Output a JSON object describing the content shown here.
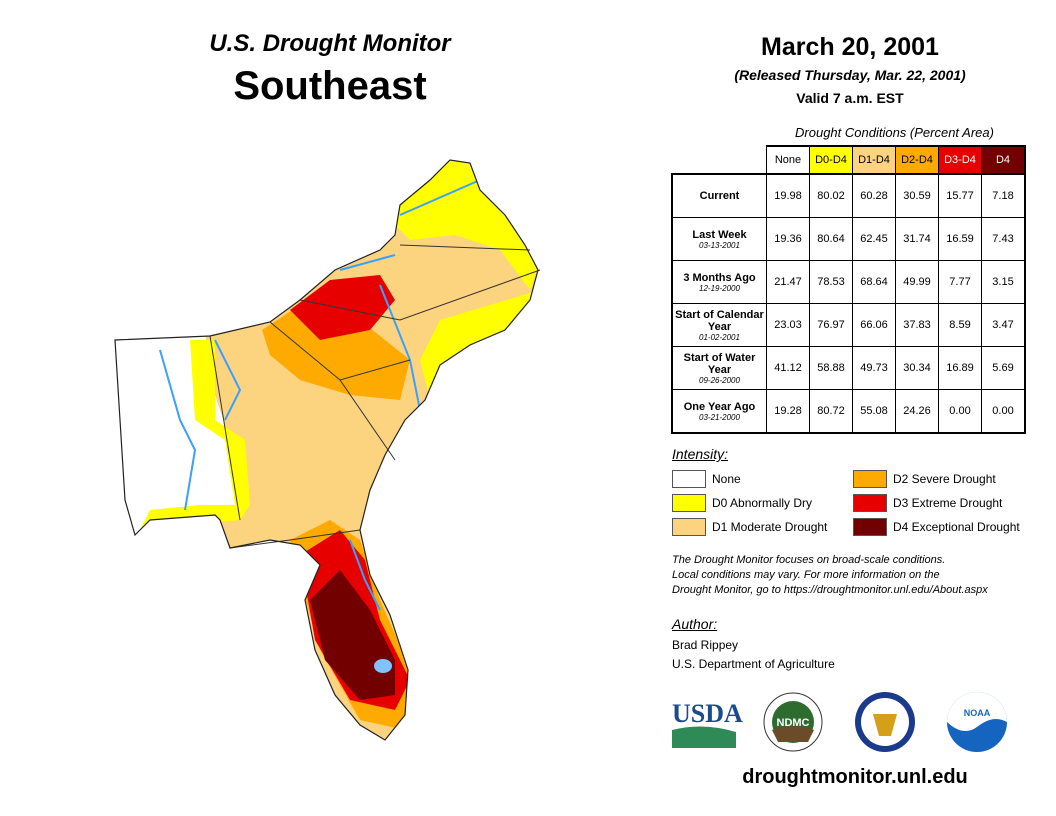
{
  "title": "U.S. Drought Monitor",
  "region": "Southeast",
  "date": "March 20, 2001",
  "released": "(Released Thursday, Mar. 22, 2001)",
  "valid": "Valid 7 a.m. EST",
  "table": {
    "caption": "Drought Conditions (Percent Area)",
    "columns": [
      "None",
      "D0-D4",
      "D1-D4",
      "D2-D4",
      "D3-D4",
      "D4"
    ],
    "column_colors": [
      "#ffffff",
      "#ffff00",
      "#fcd37f",
      "#ffaa00",
      "#e60000",
      "#730000"
    ],
    "rows": [
      {
        "label": "Current",
        "date": "",
        "values": [
          "19.98",
          "80.02",
          "60.28",
          "30.59",
          "15.77",
          "7.18"
        ]
      },
      {
        "label": "Last Week",
        "date": "03-13-2001",
        "values": [
          "19.36",
          "80.64",
          "62.45",
          "31.74",
          "16.59",
          "7.43"
        ]
      },
      {
        "label": "3 Months Ago",
        "date": "12-19-2000",
        "values": [
          "21.47",
          "78.53",
          "68.64",
          "49.99",
          "7.77",
          "3.15"
        ]
      },
      {
        "label": "Start of Calendar Year",
        "date": "01-02-2001",
        "values": [
          "23.03",
          "76.97",
          "66.06",
          "37.83",
          "8.59",
          "3.47"
        ]
      },
      {
        "label": "Start of Water Year",
        "date": "09-26-2000",
        "values": [
          "41.12",
          "58.88",
          "49.73",
          "30.34",
          "16.89",
          "5.69"
        ]
      },
      {
        "label": "One Year Ago",
        "date": "03-21-2000",
        "values": [
          "19.28",
          "80.72",
          "55.08",
          "24.26",
          "0.00",
          "0.00"
        ]
      }
    ]
  },
  "legend": {
    "title": "Intensity:",
    "items": [
      {
        "label": "None",
        "color": "#ffffff"
      },
      {
        "label": "D0 Abnormally Dry",
        "color": "#ffff00"
      },
      {
        "label": "D1 Moderate Drought",
        "color": "#fcd37f"
      },
      {
        "label": "D2 Severe Drought",
        "color": "#ffaa00"
      },
      {
        "label": "D3 Extreme Drought",
        "color": "#e60000"
      },
      {
        "label": "D4 Exceptional Drought",
        "color": "#730000"
      }
    ]
  },
  "note": [
    "The Drought Monitor focuses on broad-scale conditions.",
    "Local conditions may vary. For more information on the",
    "Drought Monitor, go to https://droughtmonitor.unl.edu/About.aspx"
  ],
  "author": {
    "title": "Author:",
    "name": "Brad Rippey",
    "org": "U.S. Department of Agriculture"
  },
  "logos": {
    "usda": "USDA",
    "ndmc": "NDMC",
    "noaa": "NOAA"
  },
  "url": "droughtmonitor.unl.edu"
}
